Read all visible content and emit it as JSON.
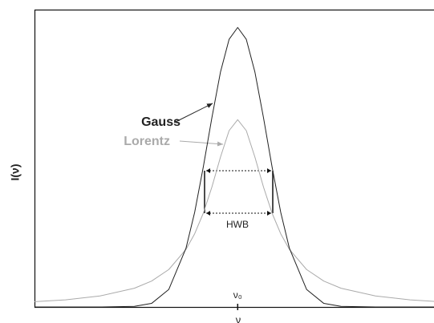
{
  "chart_data": {
    "type": "line",
    "x": [
      -5.9,
      -5,
      -4,
      -3,
      -2.5,
      -2,
      -1.5,
      -1.25,
      -1,
      -0.75,
      -0.5,
      -0.25,
      0,
      0.25,
      0.5,
      0.75,
      1,
      1.25,
      1.5,
      2,
      2.5,
      3,
      4,
      5,
      5.7
    ],
    "series": [
      {
        "name": "Gauss",
        "color": "#222222",
        "values": [
          0,
          0,
          0,
          0.002,
          0.012,
          0.059,
          0.198,
          0.318,
          0.47,
          0.636,
          0.79,
          0.9,
          0.94,
          0.9,
          0.79,
          0.636,
          0.47,
          0.318,
          0.198,
          0.059,
          0.012,
          0.002,
          0,
          0,
          0
        ]
      },
      {
        "name": "Lorentz",
        "color": "#aaaaaa",
        "values": [
          0.018,
          0.024,
          0.037,
          0.063,
          0.087,
          0.126,
          0.194,
          0.246,
          0.315,
          0.403,
          0.504,
          0.593,
          0.63,
          0.593,
          0.504,
          0.403,
          0.315,
          0.246,
          0.194,
          0.126,
          0.087,
          0.063,
          0.037,
          0.024,
          0.019
        ]
      }
    ],
    "xlim": [
      -5.9,
      5.7
    ],
    "ylim": [
      0,
      1
    ],
    "xticks": [
      {
        "value": 0,
        "label": "ν₀"
      }
    ],
    "x_label": "ν",
    "y_label": "I(ν)",
    "annotation": "HWB"
  }
}
